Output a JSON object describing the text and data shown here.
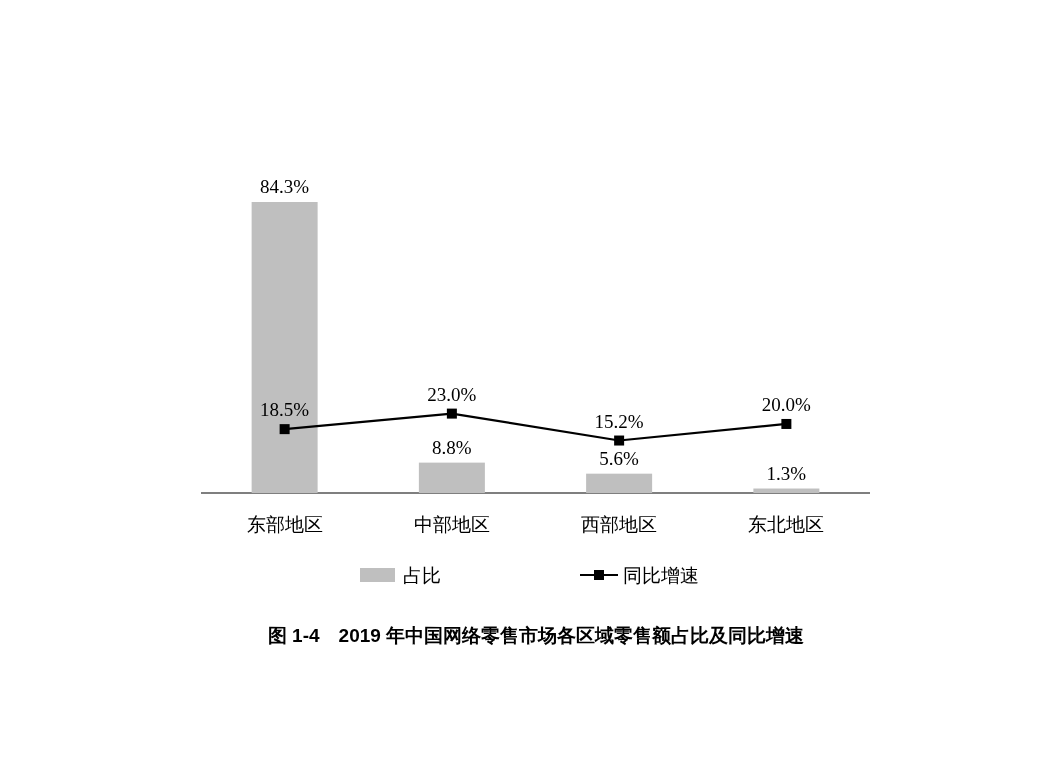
{
  "chart_data": {
    "type": "bar",
    "title": "图 1-4　2019 年中国网络零售市场各区域零售额占比及同比增速",
    "categories": [
      "东部地区",
      "中部地区",
      "西部地区",
      "东北地区"
    ],
    "series": [
      {
        "name": "占比",
        "color": "#bfbfbf",
        "values": [
          84.3,
          8.8,
          5.6,
          1.3
        ],
        "value_labels": [
          "84.3%",
          "8.8%",
          "5.6%",
          "1.3%"
        ]
      },
      {
        "name": "同比增速",
        "type": "line",
        "color": "#000000",
        "values": [
          18.5,
          23.0,
          15.2,
          20.0
        ],
        "value_labels": [
          "18.5%",
          "23.0%",
          "15.2%",
          "20.0%"
        ]
      }
    ],
    "legend": "bottom",
    "marker": "square",
    "line_style": "solid"
  }
}
